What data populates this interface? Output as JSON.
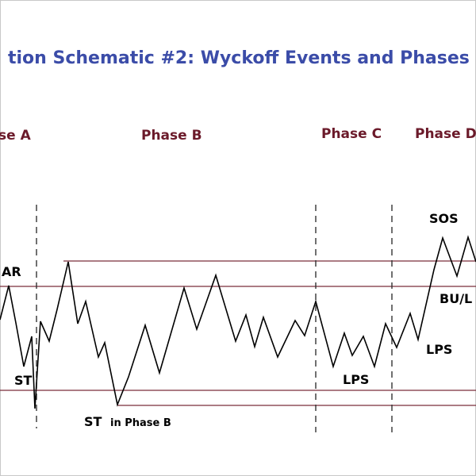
{
  "title": "tion Schematic #2: Wyckoff Events and Phases",
  "colors": {
    "title": "#3b4ca8",
    "phase": "#6b1a2a",
    "range_line": "#7a2f3a",
    "price_line": "#000000",
    "divider": "#333333",
    "border": "#c8c8c8"
  },
  "phases": [
    {
      "id": "a",
      "label": "se A"
    },
    {
      "id": "b",
      "label": "Phase B"
    },
    {
      "id": "c",
      "label": "Phase C"
    },
    {
      "id": "d",
      "label": "Phase D"
    }
  ],
  "events": {
    "ar": "AR",
    "st": "ST",
    "st_phase_b": "ST",
    "st_phase_b_suffix": "in Phase B",
    "lps_low": "LPS",
    "lps_right": "LPS",
    "sos": "SOS",
    "bu": "BU/L"
  }
}
